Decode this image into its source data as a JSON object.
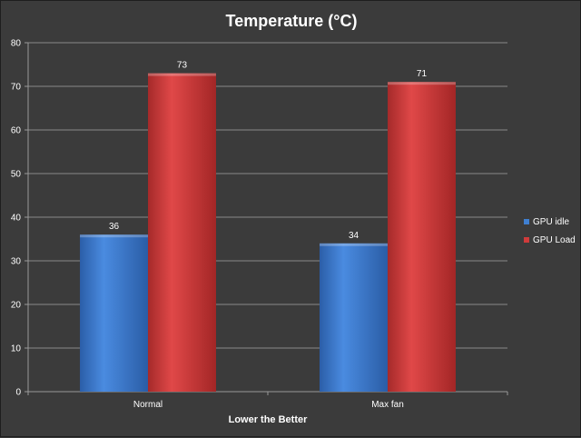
{
  "chart_data": {
    "type": "bar",
    "title": "Temperature (°C)",
    "xlabel": "Lower the Better",
    "ylabel": "",
    "ylim": [
      0,
      80
    ],
    "yticks": [
      0,
      10,
      20,
      30,
      40,
      50,
      60,
      70,
      80
    ],
    "grid": true,
    "legend_position": "right",
    "categories": [
      "Normal",
      "Max fan"
    ],
    "series": [
      {
        "name": "GPU idle",
        "values": [
          36,
          34
        ],
        "color": "#3f7fd0"
      },
      {
        "name": "GPU Load",
        "values": [
          73,
          71
        ],
        "color": "#cf3b3b"
      }
    ]
  }
}
